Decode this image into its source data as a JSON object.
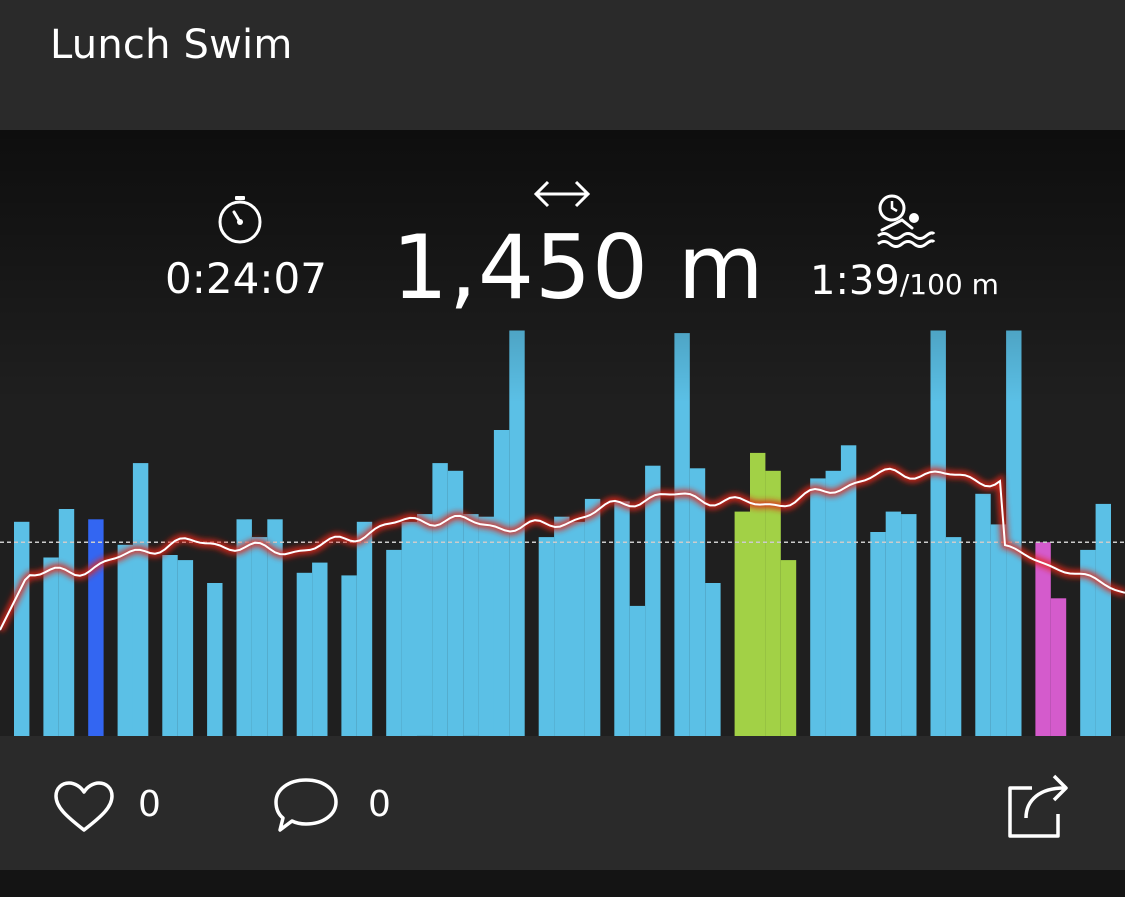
{
  "header": {
    "title": "Lunch Swim"
  },
  "stats": {
    "duration": "0:24:07",
    "distance": "1,450 m",
    "pace_value": "1:39",
    "pace_unit": "/100 m"
  },
  "chart_data": {
    "type": "bar",
    "title": "",
    "xlabel": "",
    "ylabel": "",
    "colors": {
      "freestyle": "#5bc0e6",
      "backstroke": "#3366f2",
      "breaststroke": "#a2d146",
      "butterfly": "#d45bcc",
      "heart_rate_line": "#ffffff",
      "heart_rate_glow": "#e0241b",
      "average_line": "#cccccc"
    },
    "average_level": 0.76,
    "bars": [
      {
        "stroke": "freestyle",
        "values": [
          0.84
        ]
      },
      {
        "stroke": "freestyle",
        "values": [
          0.7,
          0.89
        ]
      },
      {
        "stroke": "backstroke",
        "values": [
          0.85
        ]
      },
      {
        "stroke": "freestyle",
        "values": [
          0.75,
          1.07
        ]
      },
      {
        "stroke": "freestyle",
        "values": [
          0.71,
          0.69
        ]
      },
      {
        "stroke": "freestyle",
        "values": [
          0.6
        ]
      },
      {
        "stroke": "freestyle",
        "values": [
          0.85,
          0.78,
          0.85
        ]
      },
      {
        "stroke": "freestyle",
        "values": [
          0.64,
          0.68
        ]
      },
      {
        "stroke": "freestyle",
        "values": [
          0.63,
          0.84
        ]
      },
      {
        "stroke": "freestyle",
        "values": [
          0.73,
          0.84,
          0.87,
          1.07,
          1.04,
          0.87,
          0.86,
          1.2,
          1.59
        ]
      },
      {
        "stroke": "freestyle",
        "values": [
          0.78,
          0.86,
          0.84,
          0.93
        ]
      },
      {
        "stroke": "freestyle",
        "values": [
          0.92,
          0.51,
          1.06
        ]
      },
      {
        "stroke": "freestyle",
        "values": [
          1.58,
          1.05,
          0.6
        ]
      },
      {
        "stroke": "breaststroke",
        "values": [
          0.88,
          1.11,
          1.04,
          0.69
        ]
      },
      {
        "stroke": "freestyle",
        "values": [
          1.01,
          1.04,
          1.14
        ]
      },
      {
        "stroke": "freestyle",
        "values": [
          0.8,
          0.88,
          0.87
        ]
      },
      {
        "stroke": "freestyle",
        "values": [
          1.59,
          0.78
        ]
      },
      {
        "stroke": "freestyle",
        "values": [
          0.95,
          0.83,
          1.59
        ]
      },
      {
        "stroke": "butterfly",
        "values": [
          0.76,
          0.54
        ]
      },
      {
        "stroke": "freestyle",
        "values": [
          0.73,
          0.91
        ]
      }
    ]
  },
  "footer": {
    "likes_count": "0",
    "comments_count": "0"
  },
  "icons": {
    "duration": "stopwatch-icon",
    "distance": "double-arrow-icon",
    "pace": "swimmer-pace-icon",
    "like": "heart-icon",
    "comment": "comment-bubble-icon",
    "share": "share-icon"
  }
}
